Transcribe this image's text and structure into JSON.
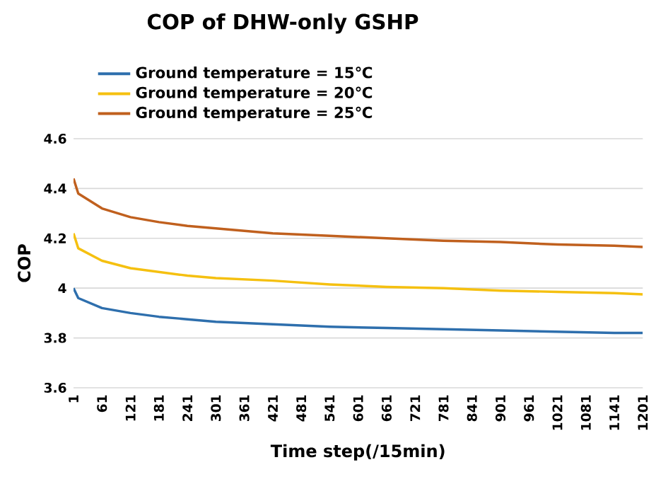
{
  "chart_data": {
    "type": "line",
    "title": "COP of DHW-only GSHP",
    "xlabel": "Time step(/15min)",
    "ylabel": "COP",
    "x": [
      1,
      11,
      61,
      121,
      181,
      241,
      301,
      421,
      541,
      661,
      781,
      901,
      1021,
      1141,
      1201
    ],
    "series": [
      {
        "name": "Ground temperature = 15℃",
        "color": "#2e6fad",
        "values": [
          4.0,
          3.96,
          3.92,
          3.9,
          3.885,
          3.875,
          3.865,
          3.855,
          3.845,
          3.84,
          3.835,
          3.83,
          3.825,
          3.82,
          3.82
        ]
      },
      {
        "name": "Ground temperature = 20℃",
        "color": "#f5c010",
        "values": [
          4.22,
          4.16,
          4.11,
          4.08,
          4.065,
          4.05,
          4.04,
          4.03,
          4.015,
          4.005,
          4.0,
          3.99,
          3.985,
          3.98,
          3.975
        ]
      },
      {
        "name": "Ground temperature = 25℃",
        "color": "#c0601e",
        "values": [
          4.44,
          4.38,
          4.32,
          4.285,
          4.265,
          4.25,
          4.24,
          4.22,
          4.21,
          4.2,
          4.19,
          4.185,
          4.175,
          4.17,
          4.165
        ]
      }
    ],
    "xlim": [
      1,
      1201
    ],
    "xticks": [
      1,
      61,
      121,
      181,
      241,
      301,
      361,
      421,
      481,
      541,
      601,
      661,
      721,
      781,
      841,
      901,
      961,
      1021,
      1081,
      1141,
      1201
    ],
    "ylim": [
      3.6,
      4.6
    ],
    "yticks": [
      3.6,
      3.8,
      4,
      4.2,
      4.4,
      4.6
    ],
    "grid": "y",
    "legend": "top left",
    "marker": "none",
    "line_style": "solid"
  }
}
